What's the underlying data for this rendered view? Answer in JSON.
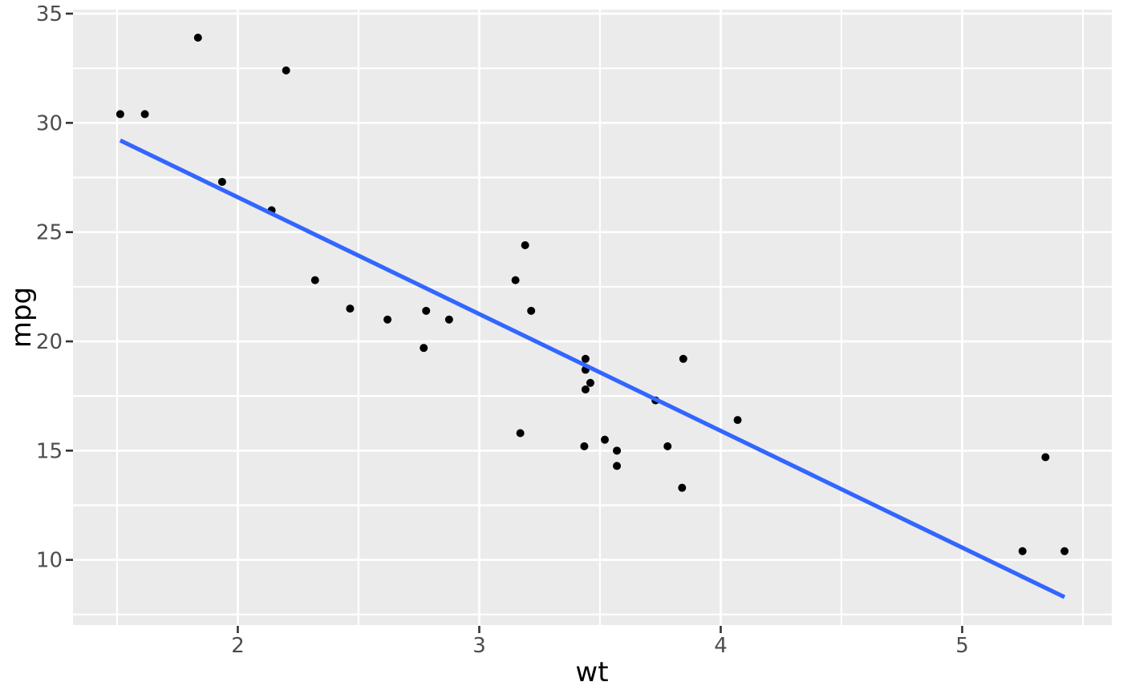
{
  "chart_data": {
    "type": "scatter",
    "title": "",
    "xlabel": "wt",
    "ylabel": "mpg",
    "xlim": [
      1.3174,
      5.6196
    ],
    "ylim": [
      7.0163,
      35.1837
    ],
    "x_ticks": [
      2,
      3,
      4,
      5
    ],
    "y_ticks": [
      10,
      15,
      20,
      25,
      30,
      35
    ],
    "x_minor_ticks": [
      1.5,
      2.5,
      3.5,
      4.5,
      5.5
    ],
    "y_minor_ticks": [
      7.5,
      12.5,
      17.5,
      22.5,
      27.5,
      32.5
    ],
    "grid": true,
    "legend_position": "none",
    "points": [
      {
        "wt": 2.62,
        "mpg": 21.0
      },
      {
        "wt": 2.875,
        "mpg": 21.0
      },
      {
        "wt": 2.32,
        "mpg": 22.8
      },
      {
        "wt": 3.215,
        "mpg": 21.4
      },
      {
        "wt": 3.44,
        "mpg": 18.7
      },
      {
        "wt": 3.46,
        "mpg": 18.1
      },
      {
        "wt": 3.57,
        "mpg": 14.3
      },
      {
        "wt": 3.19,
        "mpg": 24.4
      },
      {
        "wt": 3.15,
        "mpg": 22.8
      },
      {
        "wt": 3.44,
        "mpg": 19.2
      },
      {
        "wt": 3.44,
        "mpg": 17.8
      },
      {
        "wt": 4.07,
        "mpg": 16.4
      },
      {
        "wt": 3.73,
        "mpg": 17.3
      },
      {
        "wt": 3.78,
        "mpg": 15.2
      },
      {
        "wt": 5.25,
        "mpg": 10.4
      },
      {
        "wt": 5.424,
        "mpg": 10.4
      },
      {
        "wt": 5.345,
        "mpg": 14.7
      },
      {
        "wt": 2.2,
        "mpg": 32.4
      },
      {
        "wt": 1.615,
        "mpg": 30.4
      },
      {
        "wt": 1.835,
        "mpg": 33.9
      },
      {
        "wt": 2.465,
        "mpg": 21.5
      },
      {
        "wt": 3.52,
        "mpg": 15.5
      },
      {
        "wt": 3.435,
        "mpg": 15.2
      },
      {
        "wt": 3.84,
        "mpg": 13.3
      },
      {
        "wt": 3.845,
        "mpg": 19.2
      },
      {
        "wt": 1.935,
        "mpg": 27.3
      },
      {
        "wt": 2.14,
        "mpg": 26.0
      },
      {
        "wt": 1.513,
        "mpg": 30.4
      },
      {
        "wt": 3.17,
        "mpg": 15.8
      },
      {
        "wt": 2.77,
        "mpg": 19.7
      },
      {
        "wt": 3.57,
        "mpg": 15.0
      },
      {
        "wt": 2.78,
        "mpg": 21.4
      }
    ],
    "trend_line": {
      "type": "linear",
      "x_start": 1.513,
      "y_start": 29.199,
      "x_end": 5.424,
      "y_end": 8.297,
      "color": "#3366FF"
    },
    "theme": {
      "background": "#FFFFFF",
      "panel_background": "#EBEBEB",
      "grid_color": "#FFFFFF",
      "point_color": "#000000",
      "tick_color": "#333333",
      "tick_label_color": "#4D4D4D",
      "axis_title_color": "#000000"
    }
  }
}
